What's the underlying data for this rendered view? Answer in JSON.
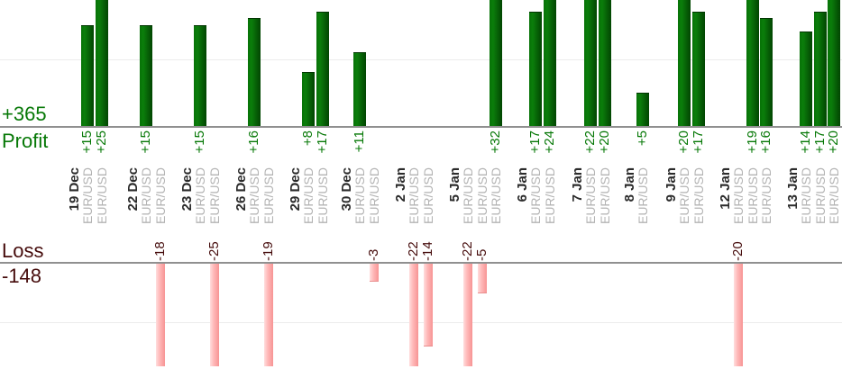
{
  "summary": {
    "profit_total_label": "+365",
    "profit_axis_title": "Profit",
    "loss_axis_title": "Loss",
    "loss_total_label": "-148"
  },
  "colors": {
    "profit_text": "#067806",
    "loss_text": "#450b0b",
    "date_text": "#2b2b2b",
    "symbol_text": "#b3b3b3",
    "axis_line": "#909090",
    "grid_line": "#ececec",
    "profit_bar_left": "#077207",
    "profit_bar_mid": "#0b7e0b",
    "profit_bar_right": "#024502",
    "loss_bar_left": "#ffdede",
    "loss_bar_mid": "#ffb9b9",
    "loss_bar_right": "#f79494"
  },
  "chart_data": {
    "type": "bar",
    "orientation": "vertical-dual",
    "profit_total": 365,
    "loss_total": -148,
    "grid_step": 10,
    "legend_position": "left",
    "groups": [
      {
        "date": "19 Dec",
        "trades": [
          {
            "symbol": "EUR/USD",
            "value": 15
          },
          {
            "symbol": "EUR/USD",
            "value": 25
          }
        ]
      },
      {
        "date": "22 Dec",
        "trades": [
          {
            "symbol": "EUR/USD",
            "value": 15
          },
          {
            "symbol": "EUR/USD",
            "value": -18
          }
        ]
      },
      {
        "date": "23 Dec",
        "trades": [
          {
            "symbol": "EUR/USD",
            "value": 15
          },
          {
            "symbol": "EUR/USD",
            "value": -25
          }
        ]
      },
      {
        "date": "26 Dec",
        "trades": [
          {
            "symbol": "EUR/USD",
            "value": 16
          },
          {
            "symbol": "EUR/USD",
            "value": -19
          }
        ]
      },
      {
        "date": "29 Dec",
        "trades": [
          {
            "symbol": "EUR/USD",
            "value": 8
          },
          {
            "symbol": "EUR/USD",
            "value": 17
          }
        ]
      },
      {
        "date": "30 Dec",
        "trades": [
          {
            "symbol": "EUR/USD",
            "value": 11
          },
          {
            "symbol": "EUR/USD",
            "value": -3
          }
        ]
      },
      {
        "date": "2 Jan",
        "trades": [
          {
            "symbol": "EUR/USD",
            "value": -22
          },
          {
            "symbol": "EUR/USD",
            "value": -14
          }
        ]
      },
      {
        "date": "5 Jan",
        "trades": [
          {
            "symbol": "EUR/USD",
            "value": -22
          },
          {
            "symbol": "EUR/USD",
            "value": -5
          },
          {
            "symbol": "EUR/USD",
            "value": 32
          }
        ]
      },
      {
        "date": "6 Jan",
        "trades": [
          {
            "symbol": "EUR/USD",
            "value": 17
          },
          {
            "symbol": "EUR/USD",
            "value": 24
          }
        ]
      },
      {
        "date": "7 Jan",
        "trades": [
          {
            "symbol": "EUR/USD",
            "value": 22
          },
          {
            "symbol": "EUR/USD",
            "value": 20
          }
        ]
      },
      {
        "date": "8 Jan",
        "trades": [
          {
            "symbol": "EUR/USD",
            "value": 5
          }
        ]
      },
      {
        "date": "9 Jan",
        "trades": [
          {
            "symbol": "EUR/USD",
            "value": 20
          },
          {
            "symbol": "EUR/USD",
            "value": 17
          }
        ]
      },
      {
        "date": "12 Jan",
        "trades": [
          {
            "symbol": "EUR/USD",
            "value": -20
          },
          {
            "symbol": "EUR/USD",
            "value": 19
          },
          {
            "symbol": "EUR/USD",
            "value": 16
          }
        ]
      },
      {
        "date": "13 Jan",
        "trades": [
          {
            "symbol": "EUR/USD",
            "value": 14
          },
          {
            "symbol": "EUR/USD",
            "value": 17
          },
          {
            "symbol": "EUR/USD",
            "value": 20
          }
        ]
      }
    ]
  }
}
